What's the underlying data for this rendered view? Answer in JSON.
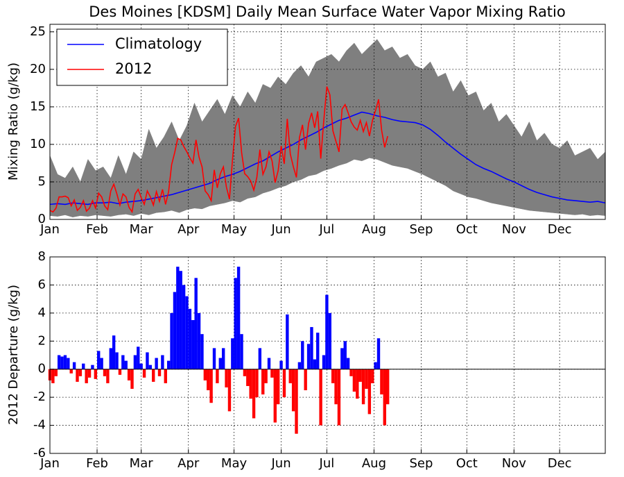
{
  "chart_data": [
    {
      "type": "line",
      "title": "Des Moines [KDSM] Daily Mean Surface Water Vapor Mixing Ratio",
      "ylabel": "Mixing Ratio (g/kg)",
      "xlim": [
        1,
        366
      ],
      "xticks": [
        {
          "value": 1,
          "label": "Jan"
        },
        {
          "value": 32,
          "label": "Feb"
        },
        {
          "value": 61,
          "label": "Mar"
        },
        {
          "value": 92,
          "label": "Apr"
        },
        {
          "value": 122,
          "label": "May"
        },
        {
          "value": 153,
          "label": "Jun"
        },
        {
          "value": 183,
          "label": "Jul"
        },
        {
          "value": 214,
          "label": "Aug"
        },
        {
          "value": 245,
          "label": "Sep"
        },
        {
          "value": 275,
          "label": "Oct"
        },
        {
          "value": 306,
          "label": "Nov"
        },
        {
          "value": 336,
          "label": "Dec"
        }
      ],
      "ylim": [
        0,
        26
      ],
      "yticks": [
        0,
        5,
        10,
        15,
        20,
        25
      ],
      "grid": true,
      "legend": "upper left",
      "x": [
        1,
        6,
        11,
        16,
        21,
        26,
        31,
        36,
        41,
        46,
        51,
        56,
        61,
        66,
        71,
        76,
        81,
        86,
        91,
        96,
        101,
        106,
        111,
        116,
        121,
        126,
        131,
        136,
        141,
        146,
        151,
        156,
        161,
        166,
        171,
        176,
        181,
        186,
        191,
        196,
        201,
        206,
        211,
        216,
        221,
        226,
        231,
        236,
        241,
        246,
        251,
        256,
        261,
        266,
        271,
        276,
        281,
        286,
        291,
        296,
        301,
        306,
        311,
        316,
        321,
        326,
        331,
        336,
        341,
        346,
        351,
        356,
        361,
        366
      ],
      "band": {
        "color": "#7f7f7f",
        "upper": [
          8.5,
          6.0,
          5.5,
          7.0,
          5.0,
          8.0,
          6.5,
          7.0,
          5.5,
          8.5,
          6.0,
          9.0,
          8.0,
          12.0,
          9.5,
          11.0,
          13.0,
          10.5,
          12.5,
          15.5,
          13.0,
          14.5,
          16.0,
          14.0,
          16.5,
          15.0,
          17.0,
          15.5,
          18.0,
          17.5,
          19.0,
          18.0,
          19.5,
          20.5,
          19.0,
          21.0,
          21.5,
          22.0,
          21.0,
          22.5,
          23.5,
          22.0,
          23.0,
          24.0,
          22.5,
          23.0,
          21.5,
          22.0,
          20.5,
          20.0,
          21.0,
          19.0,
          19.5,
          17.0,
          18.5,
          16.5,
          17.0,
          14.5,
          15.5,
          13.0,
          14.0,
          12.5,
          11.0,
          13.0,
          10.5,
          11.5,
          10.0,
          9.5,
          10.5,
          8.5,
          9.0,
          9.5,
          8.0,
          9.0
        ],
        "lower": [
          0.5,
          0.4,
          0.6,
          0.3,
          0.5,
          0.4,
          0.6,
          0.5,
          0.4,
          0.6,
          0.7,
          0.5,
          0.8,
          0.6,
          0.9,
          1.0,
          1.2,
          0.9,
          1.3,
          1.5,
          1.4,
          1.8,
          2.0,
          2.2,
          2.5,
          2.3,
          2.8,
          3.0,
          3.5,
          3.8,
          4.2,
          4.5,
          5.0,
          5.3,
          5.8,
          6.0,
          6.5,
          6.8,
          7.2,
          7.5,
          8.0,
          7.8,
          8.2,
          8.0,
          7.6,
          7.2,
          7.0,
          6.8,
          6.4,
          6.0,
          5.5,
          5.0,
          4.5,
          3.8,
          3.4,
          3.0,
          2.8,
          2.5,
          2.2,
          2.0,
          1.8,
          1.6,
          1.4,
          1.2,
          1.1,
          1.0,
          0.9,
          0.8,
          0.7,
          0.6,
          0.7,
          0.5,
          0.6,
          0.5
        ]
      },
      "series": [
        {
          "name": "Climatology",
          "color": "#0000ff",
          "values": [
            2.0,
            2.1,
            2.0,
            2.2,
            2.1,
            2.0,
            2.2,
            2.2,
            2.3,
            2.1,
            2.3,
            2.4,
            2.5,
            2.7,
            2.9,
            3.1,
            3.3,
            3.6,
            3.9,
            4.2,
            4.5,
            4.8,
            5.3,
            5.7,
            6.0,
            6.4,
            6.9,
            7.4,
            7.8,
            8.4,
            9.0,
            9.5,
            10.0,
            10.6,
            11.1,
            11.6,
            12.2,
            12.7,
            13.2,
            13.5,
            13.9,
            14.3,
            14.1,
            13.8,
            13.6,
            13.3,
            13.1,
            13.0,
            12.9,
            12.6,
            12.0,
            11.2,
            10.3,
            9.5,
            8.7,
            8.0,
            7.3,
            6.8,
            6.4,
            5.9,
            5.4,
            5.0,
            4.5,
            4.0,
            3.6,
            3.3,
            3.0,
            2.8,
            2.6,
            2.5,
            2.4,
            2.3,
            2.4,
            2.2
          ]
        },
        {
          "name": "2012",
          "color": "#ff0000",
          "x": [
            1,
            3,
            5,
            7,
            9,
            11,
            13,
            15,
            17,
            19,
            21,
            23,
            25,
            27,
            29,
            31,
            33,
            35,
            37,
            39,
            41,
            43,
            45,
            47,
            49,
            51,
            53,
            55,
            57,
            59,
            61,
            63,
            65,
            67,
            69,
            71,
            73,
            75,
            77,
            79,
            81,
            83,
            85,
            87,
            89,
            91,
            93,
            95,
            97,
            99,
            101,
            103,
            105,
            107,
            109,
            111,
            113,
            115,
            117,
            119,
            121,
            123,
            125,
            127,
            129,
            131,
            133,
            135,
            137,
            139,
            141,
            143,
            145,
            147,
            149,
            151,
            153,
            155,
            157,
            159,
            161,
            163,
            165,
            167,
            169,
            171,
            173,
            175,
            177,
            179,
            181,
            183,
            185,
            187,
            189,
            191,
            193,
            195,
            197,
            199,
            201,
            203,
            205,
            207,
            209,
            211,
            213,
            215,
            217,
            219,
            221,
            223
          ],
          "values": [
            1.2,
            1.0,
            1.5,
            3.0,
            3.0,
            3.1,
            2.9,
            1.8,
            2.6,
            1.2,
            1.6,
            2.5,
            1.1,
            1.5,
            2.5,
            1.5,
            3.5,
            3.0,
            1.8,
            1.3,
            3.8,
            4.7,
            3.4,
            1.9,
            3.4,
            3.0,
            1.6,
            1.0,
            3.4,
            4.0,
            2.9,
            2.0,
            3.8,
            3.0,
            1.9,
            3.7,
            2.4,
            4.0,
            2.0,
            3.7,
            7.3,
            8.9,
            10.8,
            10.6,
            9.7,
            9.0,
            8.2,
            7.5,
            10.6,
            8.3,
            7.0,
            3.8,
            3.3,
            2.5,
            6.6,
            4.2,
            6.1,
            7.0,
            4.3,
            2.7,
            8.0,
            12.4,
            13.5,
            8.9,
            6.1,
            5.7,
            5.1,
            3.9,
            5.6,
            9.3,
            6.0,
            7.0,
            9.0,
            7.8,
            4.9,
            6.5,
            9.8,
            7.4,
            13.4,
            8.7,
            7.0,
            5.6,
            10.9,
            12.6,
            9.3,
            12.8,
            14.2,
            12.2,
            14.4,
            8.1,
            13.2,
            17.7,
            16.6,
            11.8,
            10.4,
            9.0,
            14.7,
            15.3,
            14.2,
            13.0,
            12.3,
            11.9,
            13.2,
            11.7,
            12.9,
            11.1,
            13.2,
            14.5,
            16.0,
            11.9,
            9.6,
            11.1
          ]
        }
      ]
    },
    {
      "type": "bar",
      "ylabel": "2012 Departure (g/kg)",
      "xlim": [
        1,
        366
      ],
      "xticks": [
        {
          "value": 1,
          "label": "Jan"
        },
        {
          "value": 32,
          "label": "Feb"
        },
        {
          "value": 61,
          "label": "Mar"
        },
        {
          "value": 92,
          "label": "Apr"
        },
        {
          "value": 122,
          "label": "May"
        },
        {
          "value": 153,
          "label": "Jun"
        },
        {
          "value": 183,
          "label": "Jul"
        },
        {
          "value": 214,
          "label": "Aug"
        },
        {
          "value": 245,
          "label": "Sep"
        },
        {
          "value": 275,
          "label": "Oct"
        },
        {
          "value": 306,
          "label": "Nov"
        },
        {
          "value": 336,
          "label": "Dec"
        }
      ],
      "ylim": [
        -6,
        8
      ],
      "yticks": [
        -6,
        -4,
        -2,
        0,
        2,
        4,
        6,
        8
      ],
      "grid": true,
      "colors": {
        "positive": "#0000ff",
        "negative": "#ff0000"
      },
      "x": [
        1,
        3,
        5,
        7,
        9,
        11,
        13,
        15,
        17,
        19,
        21,
        23,
        25,
        27,
        29,
        31,
        33,
        35,
        37,
        39,
        41,
        43,
        45,
        47,
        49,
        51,
        53,
        55,
        57,
        59,
        61,
        63,
        65,
        67,
        69,
        71,
        73,
        75,
        77,
        79,
        81,
        83,
        85,
        87,
        89,
        91,
        93,
        95,
        97,
        99,
        101,
        103,
        105,
        107,
        109,
        111,
        113,
        115,
        117,
        119,
        121,
        123,
        125,
        127,
        129,
        131,
        133,
        135,
        137,
        139,
        141,
        143,
        145,
        147,
        149,
        151,
        153,
        155,
        157,
        159,
        161,
        163,
        165,
        167,
        169,
        171,
        173,
        175,
        177,
        179,
        181,
        183,
        185,
        187,
        189,
        191,
        193,
        195,
        197,
        199,
        201,
        203,
        205,
        207,
        209,
        211,
        213,
        215,
        217,
        219,
        221,
        223
      ],
      "values": [
        -0.8,
        -1.0,
        -0.5,
        1.0,
        0.9,
        1.0,
        0.8,
        -0.3,
        0.5,
        -0.9,
        -0.5,
        0.4,
        -1.0,
        -0.6,
        0.3,
        -0.7,
        1.3,
        0.8,
        -0.5,
        -1.0,
        1.5,
        2.4,
        1.2,
        -0.4,
        1.0,
        0.6,
        -0.8,
        -1.4,
        1.0,
        1.6,
        0.4,
        -0.6,
        1.2,
        0.3,
        -0.9,
        0.8,
        -0.5,
        1.0,
        -1.0,
        0.6,
        4.0,
        5.5,
        7.3,
        7.0,
        6.0,
        5.2,
        4.3,
        3.5,
        6.5,
        4.0,
        2.5,
        -0.8,
        -1.5,
        -2.4,
        1.5,
        -1.0,
        0.8,
        1.5,
        -1.3,
        -3.0,
        2.2,
        6.5,
        7.3,
        2.5,
        -0.5,
        -1.2,
        -2.1,
        -3.5,
        -2.0,
        1.5,
        -1.8,
        -1.0,
        0.8,
        -0.6,
        -3.8,
        -2.5,
        0.6,
        -2.0,
        3.9,
        -1.0,
        -3.0,
        -4.6,
        0.5,
        2.0,
        -1.5,
        1.8,
        3.0,
        0.7,
        2.6,
        -4.0,
        1.0,
        5.3,
        4.0,
        -1.0,
        -2.5,
        -4.0,
        1.5,
        2.0,
        0.8,
        -0.5,
        -1.6,
        -2.1,
        -0.9,
        -2.5,
        -1.4,
        -3.2,
        -1.0,
        0.5,
        2.2,
        -1.8,
        -4.0,
        -2.5
      ]
    }
  ]
}
